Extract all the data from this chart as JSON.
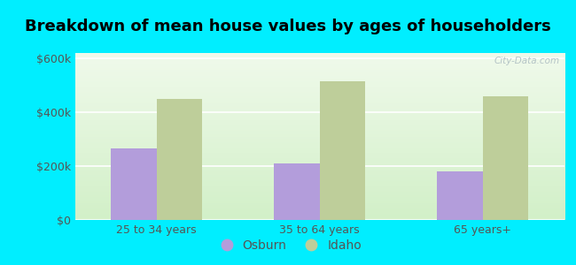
{
  "title": "Breakdown of mean house values by ages of householders",
  "categories": [
    "25 to 34 years",
    "35 to 64 years",
    "65 years+"
  ],
  "osburn_values": [
    265000,
    210000,
    180000
  ],
  "idaho_values": [
    450000,
    515000,
    460000
  ],
  "osburn_color": "#b39ddb",
  "idaho_color": "#bece9a",
  "background_outer": "#00eeff",
  "ylim": [
    0,
    620000
  ],
  "yticks": [
    0,
    200000,
    400000,
    600000
  ],
  "ytick_labels": [
    "$0",
    "$200k",
    "$400k",
    "$600k"
  ],
  "bar_width": 0.28,
  "legend_osburn": "Osburn",
  "legend_idaho": "Idaho",
  "title_fontsize": 13,
  "tick_fontsize": 9,
  "legend_fontsize": 10,
  "watermark": "City-Data.com"
}
